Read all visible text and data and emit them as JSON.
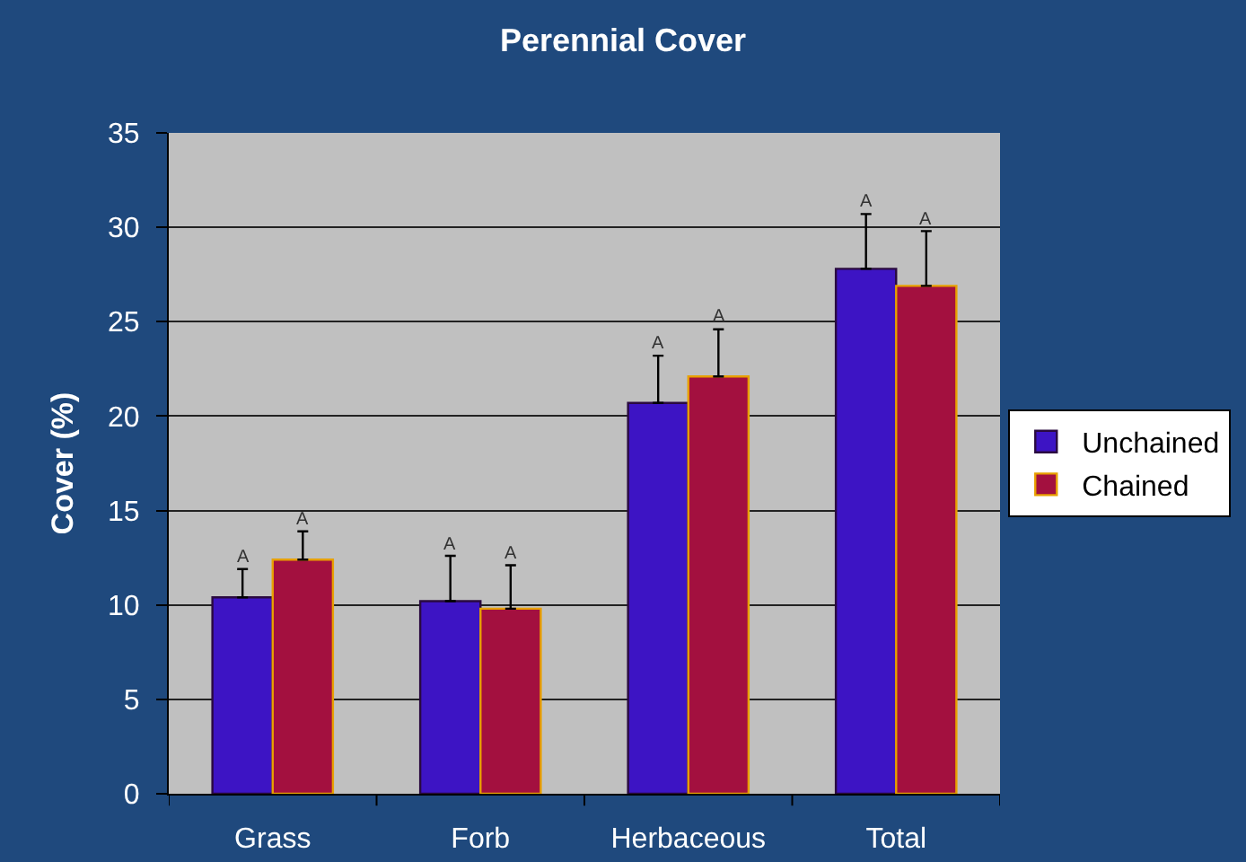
{
  "chart_data": {
    "type": "bar",
    "title": "Perennial Cover",
    "ylabel": "Cover (%)",
    "categories": [
      "Grass",
      "Forb",
      "Herbaceous",
      "Total"
    ],
    "series": [
      {
        "name": "Unchained",
        "color": "#3d14c4",
        "values": [
          10.4,
          10.2,
          20.7,
          27.8
        ],
        "errors": [
          [
            10.4,
            11.9
          ],
          [
            10.2,
            12.6
          ],
          [
            20.7,
            23.2
          ],
          [
            27.8,
            30.7
          ]
        ],
        "value_labels": [
          "A",
          "A",
          "A",
          "A"
        ]
      },
      {
        "name": "Chained",
        "color": "#a3103f",
        "values": [
          12.4,
          9.8,
          22.1,
          26.9
        ],
        "errors": [
          [
            12.4,
            13.9
          ],
          [
            9.8,
            12.1
          ],
          [
            22.1,
            24.6
          ],
          [
            26.9,
            29.8
          ]
        ],
        "value_labels": [
          "A",
          "A",
          "A",
          "A"
        ]
      }
    ],
    "ylim": [
      0,
      35
    ],
    "yticks": [
      0,
      5,
      10,
      15,
      20,
      25,
      30,
      35
    ],
    "grid": "y",
    "legend": "right"
  }
}
